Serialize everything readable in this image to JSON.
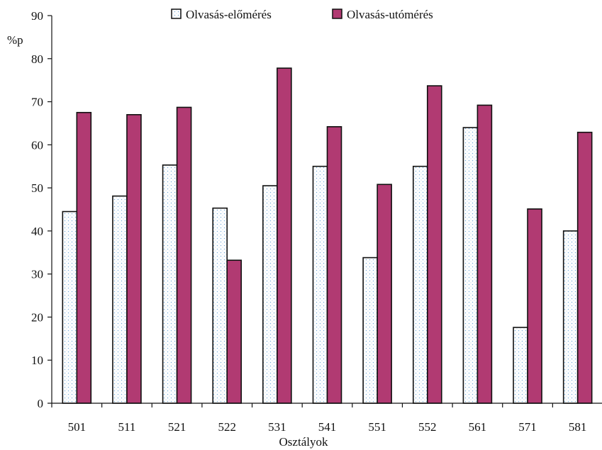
{
  "chart_data": {
    "type": "bar",
    "title": "",
    "xlabel": "Osztályok",
    "ylabel": "%p",
    "ylim": [
      0,
      90
    ],
    "yticks": [
      0,
      10,
      20,
      30,
      40,
      50,
      60,
      70,
      80,
      90
    ],
    "grid": false,
    "legend_position": "top",
    "categories": [
      "501",
      "511",
      "521",
      "522",
      "531",
      "541",
      "551",
      "552",
      "561",
      "571",
      "581"
    ],
    "series": [
      {
        "name": "Olvasás-előmérés",
        "pattern": "dotted",
        "color": "#5b9bd5",
        "values": [
          44.5,
          48.1,
          55.3,
          45.3,
          50.5,
          55.0,
          33.8,
          55.0,
          64.0,
          17.6,
          40.0
        ]
      },
      {
        "name": "Olvasás-utómérés",
        "pattern": "solid",
        "color": "#b13a72",
        "values": [
          67.5,
          67.0,
          68.7,
          33.2,
          77.8,
          64.2,
          50.8,
          73.7,
          69.2,
          45.1,
          62.9
        ]
      }
    ]
  }
}
